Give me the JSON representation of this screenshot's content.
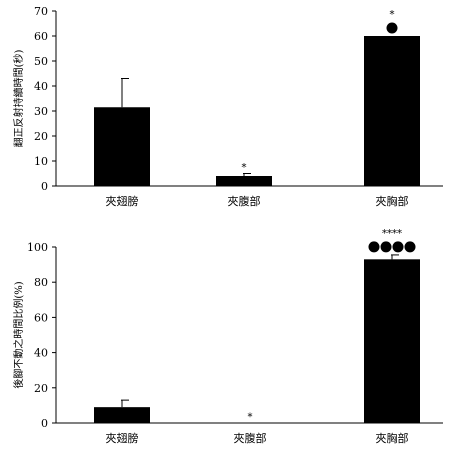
{
  "chart_data": [
    {
      "type": "bar",
      "categories": [
        "夾翅膀",
        "夾腹部",
        "夾胸部"
      ],
      "values": [
        31.5,
        4,
        60
      ],
      "errors": [
        11.5,
        1,
        0
      ],
      "annotations": [
        "",
        "*",
        "*"
      ],
      "dots": [
        0,
        0,
        1
      ],
      "title": "",
      "xlabel": "",
      "ylabel": "翻正反射持續時間(秒)",
      "ylim": [
        0,
        70
      ],
      "yticks": [
        "0",
        "10",
        "20",
        "30",
        "40",
        "50",
        "60",
        "70"
      ]
    },
    {
      "type": "bar",
      "categories": [
        "夾翅膀",
        "夾腹部",
        "夾胸部"
      ],
      "values": [
        9,
        0,
        93
      ],
      "errors": [
        4,
        0,
        2.5
      ],
      "annotations": [
        "",
        "*",
        "****"
      ],
      "dots": [
        0,
        0,
        4
      ],
      "title": "",
      "xlabel": "",
      "ylabel": "後腳不動之時間比例(%)",
      "ylim": [
        0,
        100
      ],
      "yticks": [
        "0",
        "20",
        "40",
        "60",
        "80",
        "100"
      ]
    }
  ]
}
